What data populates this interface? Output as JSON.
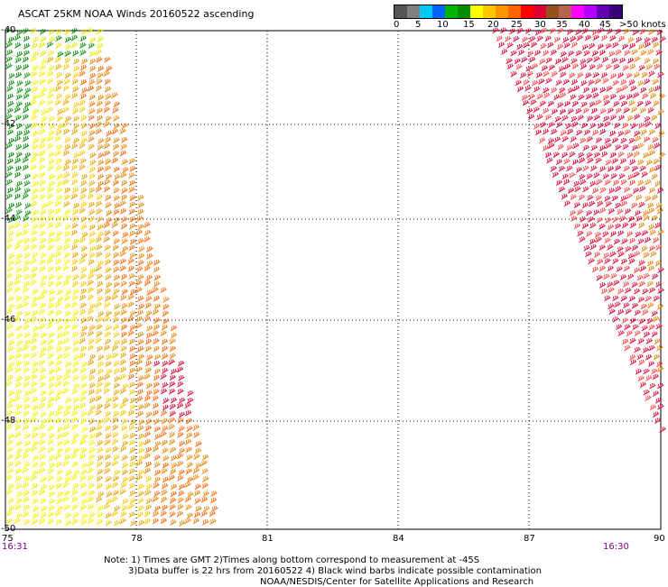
{
  "header": {
    "title": "ASCAT 25KM NOAA Winds 20160522 ascending"
  },
  "legend": {
    "colors": [
      "#555555",
      "#808080",
      "#00c8ff",
      "#0064ff",
      "#00b400",
      "#008c00",
      "#ffff00",
      "#ffc800",
      "#ff9600",
      "#ff6400",
      "#ff0000",
      "#dc0032",
      "#96501e",
      "#b46450",
      "#ff00ff",
      "#b400ff",
      "#6400b4",
      "#3c0078"
    ],
    "labels": [
      "0",
      "5",
      "10",
      "15",
      "20",
      "25",
      "30",
      "35",
      "40",
      "45",
      ">50 knots"
    ]
  },
  "map": {
    "lat_labels": [
      "-40",
      "-42",
      "-44",
      "-46",
      "-48",
      "-50"
    ],
    "lon_labels": [
      "75",
      "78",
      "81",
      "84",
      "87",
      "90"
    ]
  },
  "times": {
    "left": "16:31",
    "right": "16:30"
  },
  "notes": {
    "line1": "Note: 1) Times are GMT 2)Times along bottom correspond to measurement at -45S",
    "line2": "3)Data buffer is 22 hrs from 20160522 4) Black wind barbs indicate possible contamination",
    "line3": "NOAA/NESDIS/Center for Satellite Applications and Research"
  }
}
